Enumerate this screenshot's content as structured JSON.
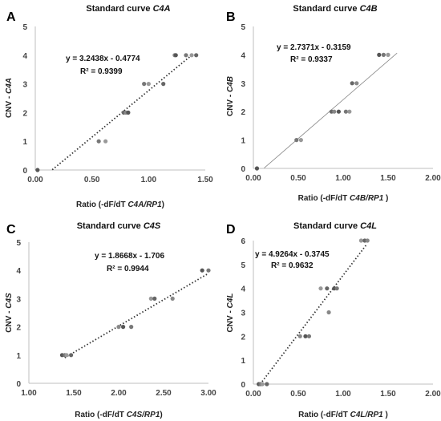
{
  "chart_data": [
    {
      "panel": "A",
      "type": "scatter",
      "title": "Standard curve ",
      "title_em": "C4A",
      "xlabel_pre": "Ratio (-dF/dT ",
      "xlabel_em": "C4A/RP1",
      "xlabel_post": ")",
      "ylabel_pre": "CNV - ",
      "ylabel_em": "C4A",
      "xlim": [
        0,
        1.5
      ],
      "ylim": [
        0,
        5
      ],
      "xticks": [
        "0.00",
        "0.50",
        "1.00",
        "1.50"
      ],
      "yticks": [
        "0",
        "1",
        "2",
        "3",
        "4",
        "5"
      ],
      "trendline": {
        "slope": 3.2438,
        "intercept": -0.4774,
        "style": "dotted",
        "from": 0.15,
        "to": 1.38
      },
      "equation": "y = 3.2438x - 0.4774",
      "r2": "R² = 0.9399",
      "points": [
        [
          0.02,
          0
        ],
        [
          0.56,
          1
        ],
        [
          0.62,
          1
        ],
        [
          0.78,
          2
        ],
        [
          0.8,
          2
        ],
        [
          0.82,
          2
        ],
        [
          0.96,
          3
        ],
        [
          1.0,
          3
        ],
        [
          1.13,
          3
        ],
        [
          1.23,
          4
        ],
        [
          1.24,
          4
        ],
        [
          1.33,
          4
        ],
        [
          1.38,
          4
        ],
        [
          1.42,
          4
        ]
      ]
    },
    {
      "panel": "B",
      "type": "scatter",
      "title": "Standard curve ",
      "title_em": "C4B",
      "xlabel_pre": "Ratio (-dF/dT ",
      "xlabel_em": "C4B/RP1",
      "xlabel_post": " )",
      "ylabel_pre": "CNV - ",
      "ylabel_em": "C4B",
      "xlim": [
        0,
        2
      ],
      "ylim": [
        0,
        5
      ],
      "xticks": [
        "0.00",
        "0.50",
        "1.00",
        "1.50",
        "2.00"
      ],
      "yticks": [
        "0",
        "1",
        "2",
        "3",
        "4",
        "5"
      ],
      "trendline": {
        "slope": 2.7371,
        "intercept": -0.3159,
        "style": "solid",
        "from": 0.12,
        "to": 1.6
      },
      "equation": "y = 2.7371x - 0.3159",
      "r2": "R² = 0.9337",
      "points": [
        [
          0.04,
          0
        ],
        [
          0.48,
          1
        ],
        [
          0.53,
          1
        ],
        [
          0.87,
          2
        ],
        [
          0.9,
          2
        ],
        [
          0.95,
          2
        ],
        [
          1.03,
          2
        ],
        [
          1.07,
          2
        ],
        [
          1.1,
          3
        ],
        [
          1.15,
          3
        ],
        [
          1.4,
          4
        ],
        [
          1.45,
          4
        ],
        [
          1.5,
          4
        ]
      ]
    },
    {
      "panel": "C",
      "type": "scatter",
      "title": "Standard curve ",
      "title_em": "C4S",
      "xlabel_pre": "Ratio (-dF/dT ",
      "xlabel_em": "C4S/RP1",
      "xlabel_post": ")",
      "ylabel_pre": "CNV - ",
      "ylabel_em": "C4S",
      "xlim": [
        1,
        3
      ],
      "ylim": [
        0,
        5
      ],
      "xticks": [
        "1.00",
        "1.50",
        "2.00",
        "2.50",
        "3.00"
      ],
      "yticks": [
        "0",
        "1",
        "2",
        "3",
        "4",
        "5"
      ],
      "trendline": {
        "slope": 1.8668,
        "intercept": -1.706,
        "style": "dotted",
        "from": 1.4,
        "to": 3.0
      },
      "equation": "y = 1.8668x - 1.706",
      "r2": "R² = 0.9944",
      "points": [
        [
          1.37,
          1
        ],
        [
          1.4,
          1
        ],
        [
          1.42,
          1
        ],
        [
          1.47,
          1
        ],
        [
          2.0,
          2
        ],
        [
          2.05,
          2
        ],
        [
          2.14,
          2
        ],
        [
          2.36,
          3
        ],
        [
          2.4,
          3
        ],
        [
          2.6,
          3
        ],
        [
          2.93,
          4
        ],
        [
          3.0,
          4
        ]
      ]
    },
    {
      "panel": "D",
      "type": "scatter",
      "title": "Standard curve ",
      "title_em": "C4L",
      "xlabel_pre": "Ratio (-dF/dT ",
      "xlabel_em": "C4L/RP1",
      "xlabel_post": " )",
      "ylabel_pre": "CNV - ",
      "ylabel_em": "C4L",
      "xlim": [
        0,
        2
      ],
      "ylim": [
        0,
        6
      ],
      "xticks": [
        "0.00",
        "0.50",
        "1.00",
        "1.50",
        "2.00"
      ],
      "yticks": [
        "0",
        "1",
        "2",
        "3",
        "4",
        "5",
        "6"
      ],
      "trendline": {
        "slope": 4.9264,
        "intercept": -0.3745,
        "style": "dotted",
        "from": 0.076,
        "to": 1.26
      },
      "equation": "y = 4.9264x - 0.3745",
      "r2": "R² = 0.9632",
      "points": [
        [
          0.06,
          0
        ],
        [
          0.08,
          0
        ],
        [
          0.1,
          0
        ],
        [
          0.15,
          0
        ],
        [
          0.52,
          2
        ],
        [
          0.58,
          2
        ],
        [
          0.62,
          2
        ],
        [
          0.75,
          4
        ],
        [
          0.82,
          4
        ],
        [
          0.84,
          3
        ],
        [
          0.9,
          4
        ],
        [
          0.93,
          4
        ],
        [
          1.2,
          6
        ],
        [
          1.24,
          6
        ],
        [
          1.27,
          6
        ]
      ]
    }
  ]
}
